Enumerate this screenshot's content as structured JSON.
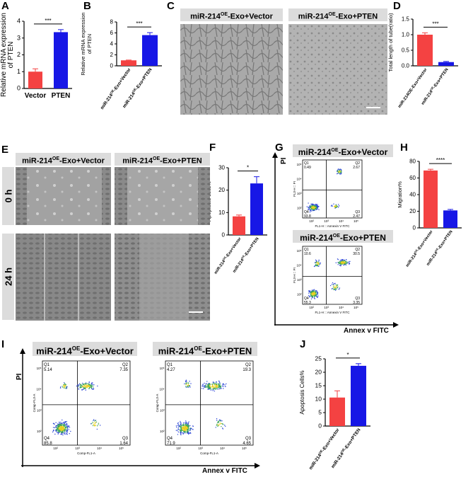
{
  "panel_letters": {
    "a": "A",
    "b": "B",
    "c": "C",
    "d": "D",
    "e": "E",
    "f": "F",
    "g": "G",
    "h": "H",
    "i": "I",
    "j": "J"
  },
  "conditions": {
    "vector_prefix": "miR-214",
    "oe_sup": "OE",
    "vector_suffix": "-Exo+Vector",
    "pten_suffix": "-Exo+PTEN"
  },
  "panel_e": {
    "row_0h": "0 h",
    "row_24h": "24 h"
  },
  "panel_g": {
    "y_axis": "PI",
    "x_axis": "Annex v FITC",
    "top": {
      "q1": "Q1",
      "q1v": "0.49",
      "q2": "Q2",
      "q2v": "2.67",
      "q4": "Q4",
      "q4v": "93.8",
      "q3": "Q3",
      "q3v": "2.47",
      "xl": "FL1-H :: Annexin V FITC",
      "yl": "FL3-H :: PI"
    },
    "bottom": {
      "q1": "Q1",
      "q1v": "10.6",
      "q2": "Q2",
      "q2v": "30.5",
      "q4": "Q4",
      "q4v": "55.3",
      "q3": "Q3",
      "q3v": "3.35",
      "xl": "FL1-H :: Annexin V FITC",
      "yl": "FL3-H :: PI"
    }
  },
  "panel_i": {
    "y_axis": "PI",
    "x_axis": "Annex v FITC",
    "left": {
      "q1": "Q1",
      "q1v": "5.14",
      "q2": "Q2",
      "q2v": "7.35",
      "q4": "Q4",
      "q4v": "85.8",
      "q3": "Q3",
      "q3v": "1.64",
      "xl": "Comp-FL1-A",
      "yl": "Comp-FL3-A"
    },
    "right": {
      "q1": "Q1",
      "q1v": "4.27",
      "q2": "Q2",
      "q2v": "19.3",
      "q4": "Q4",
      "q4v": "71.9",
      "q3": "Q3",
      "q3v": "4.65",
      "xl": "Comp-FL1-A",
      "yl": "Comp-FL3-A"
    }
  },
  "colors": {
    "red": "#f44242",
    "blue": "#1717e6"
  },
  "chart_data": [
    {
      "id": "A",
      "type": "bar",
      "categories": [
        "Vector",
        "PTEN"
      ],
      "values": [
        1.0,
        3.35
      ],
      "errors": [
        0.17,
        0.15
      ],
      "ylabel": "Relative mRNA expression of PTEN",
      "ylim": [
        0,
        4
      ],
      "yticks": [
        0,
        1,
        2,
        3,
        4
      ],
      "significance": "***"
    },
    {
      "id": "B",
      "type": "bar",
      "categories": [
        "miR-214OE-Exo+Vector",
        "miR-214OE-Exo+PTEN"
      ],
      "values": [
        1.0,
        5.6
      ],
      "errors": [
        0.05,
        0.45
      ],
      "ylabel": "Relative mRNA expression of PTEN",
      "ylim": [
        0,
        8
      ],
      "yticks": [
        0,
        2,
        4,
        6,
        8
      ],
      "significance": "***"
    },
    {
      "id": "D",
      "type": "bar",
      "categories": [
        "miR-214OE-Exo+Vector",
        "miR-214OE-Exo+PTEN"
      ],
      "values": [
        1.0,
        0.12
      ],
      "errors": [
        0.06,
        0.02
      ],
      "ylabel": "Total length of tube(ratio)",
      "ylim": [
        0,
        1.5
      ],
      "yticks": [
        0.0,
        0.5,
        1.0,
        1.5
      ],
      "significance": "***"
    },
    {
      "id": "F",
      "type": "bar",
      "categories": [
        "miR-214OE-Exo+Vector",
        "miR-214OE-Exo+PTEN"
      ],
      "values": [
        8.3,
        23.0
      ],
      "errors": [
        0.6,
        3.0
      ],
      "ylabel": "Apoptosis cells%",
      "ylim": [
        0,
        30
      ],
      "yticks": [
        0,
        10,
        20,
        30
      ],
      "significance": "*"
    },
    {
      "id": "H",
      "type": "bar",
      "categories": [
        "miR-214OE-Exo+Vector",
        "miR-214OE-Exo+PTEN"
      ],
      "values": [
        69,
        21
      ],
      "errors": [
        1.5,
        1.2
      ],
      "ylabel": "Migration%",
      "ylim": [
        0,
        80
      ],
      "yticks": [
        0,
        20,
        40,
        60,
        80
      ],
      "significance": "****"
    },
    {
      "id": "J",
      "type": "bar",
      "categories": [
        "miR-214OE-Exo+Vector",
        "miR-214OE-Exo+PTEN"
      ],
      "values": [
        10.6,
        22.4
      ],
      "errors": [
        2.5,
        0.8
      ],
      "ylabel": "Apoptosis Cells%",
      "ylim": [
        0,
        25
      ],
      "yticks": [
        0,
        5,
        10,
        15,
        20,
        25
      ],
      "significance": "*"
    }
  ]
}
